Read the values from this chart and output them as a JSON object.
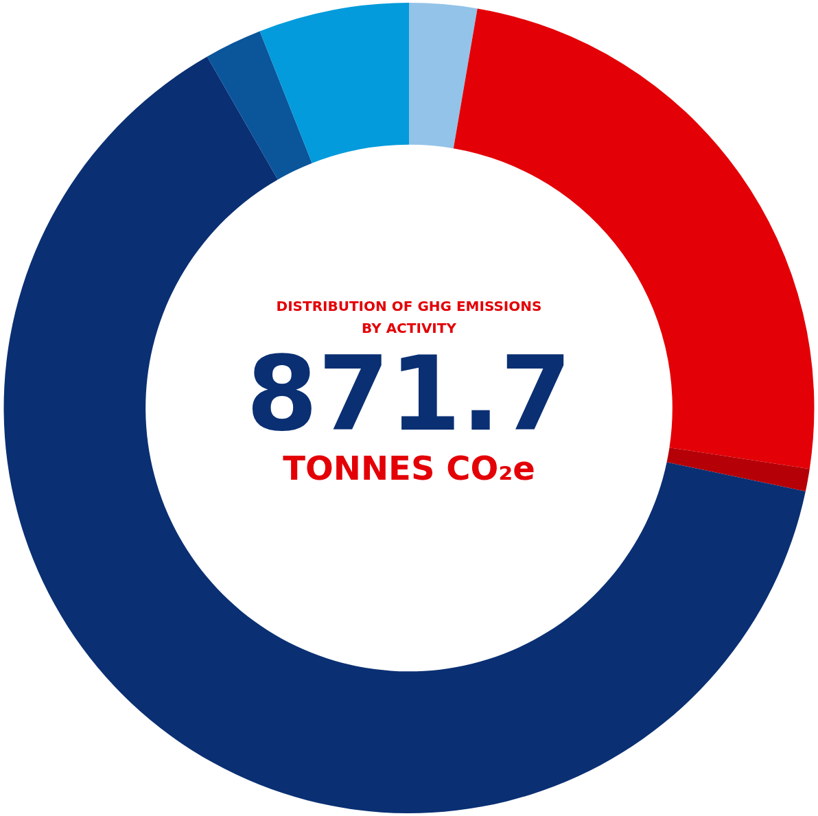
{
  "chart_data": {
    "type": "donut",
    "title": "DISTRIBUTION OF GHG EMISSIONS\nBY ACTIVITY",
    "annotations": [
      "871.7",
      "TONNES CO₂e"
    ],
    "categories": [
      null,
      null,
      null,
      null,
      null,
      null
    ],
    "values": [
      2.7,
      24.7,
      0.9,
      63.4,
      2.3,
      6.0
    ],
    "colors": [
      "#93c3e8",
      "#e30006",
      "#b50008",
      "#0a2f73",
      "#0b559b",
      "#039bdb"
    ],
    "legend": false
  }
}
